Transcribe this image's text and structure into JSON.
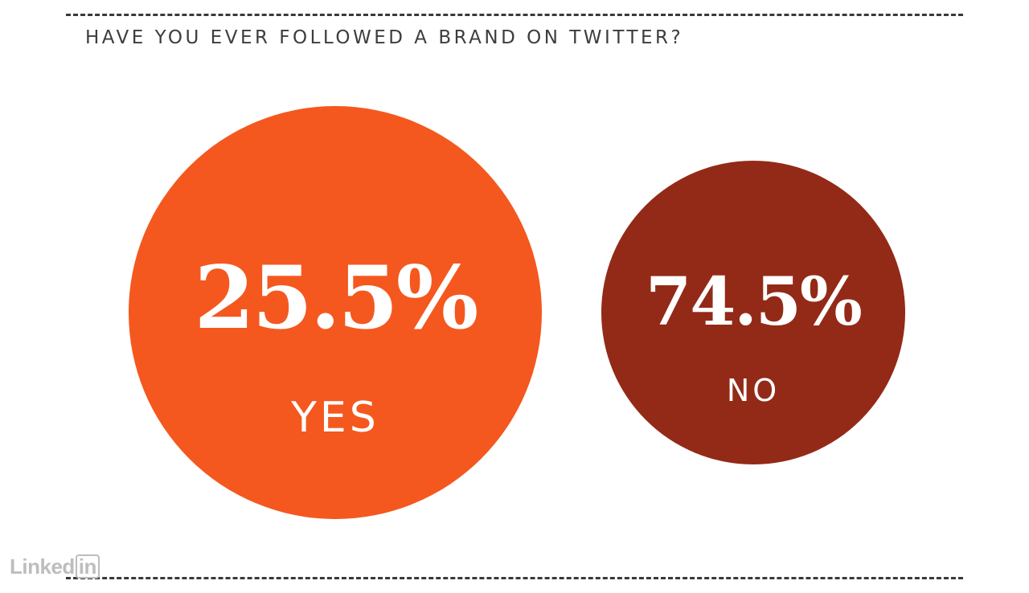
{
  "chart_data": {
    "type": "bubble",
    "title": "HAVE YOU EVER FOLLOWED A BRAND ON TWITTER?",
    "categories": [
      "YES",
      "NO"
    ],
    "values": [
      25.5,
      74.5
    ],
    "value_labels": [
      "25.5%",
      "74.5%"
    ],
    "colors": [
      "#f4581f",
      "#932a17"
    ],
    "value_color": "#ffffff"
  },
  "watermark": {
    "text_main": "Linked",
    "text_box": "in"
  }
}
